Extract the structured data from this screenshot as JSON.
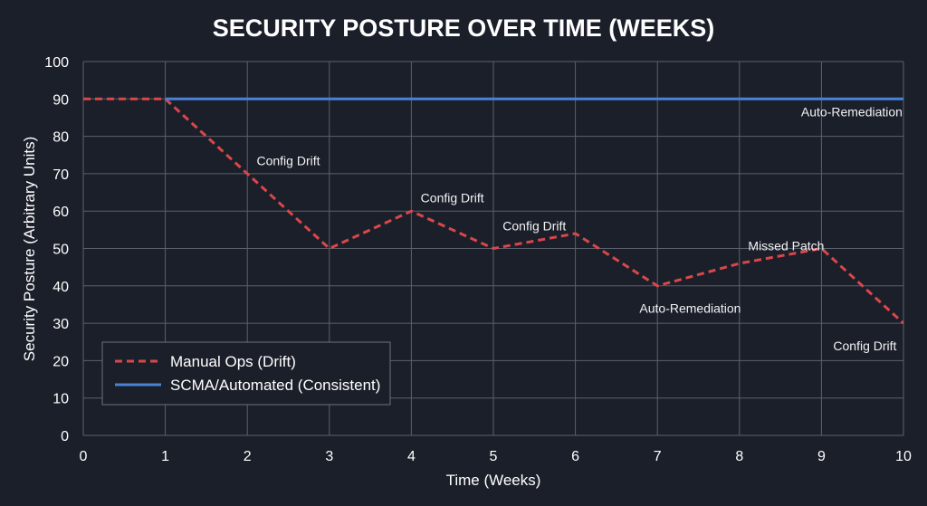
{
  "chart_data": {
    "type": "line",
    "title": "SECURITY POSTURE OVER TIME (WEEKS)",
    "xlabel": "Time (Weeks)",
    "ylabel": "Security Posture (Arbitrary Units)",
    "xlim": [
      0,
      10
    ],
    "ylim": [
      0,
      100
    ],
    "x_ticks": [
      0,
      1,
      2,
      3,
      4,
      5,
      6,
      7,
      8,
      9,
      10
    ],
    "y_ticks": [
      0,
      10,
      20,
      30,
      40,
      50,
      60,
      70,
      80,
      90,
      100
    ],
    "grid": true,
    "legend_position": "bottom-left",
    "series": [
      {
        "name": "Manual Ops (Drift)",
        "style": "dashed",
        "color": "#d9474b",
        "x": [
          0,
          1,
          2,
          3,
          4,
          5,
          6,
          7,
          8,
          9,
          10
        ],
        "y": [
          90,
          90,
          70,
          50,
          60,
          50,
          54,
          40,
          46,
          50,
          30
        ]
      },
      {
        "name": "SCMA/Automated (Consistent)",
        "style": "solid",
        "color": "#4a82d4",
        "x": [
          1,
          10
        ],
        "y": [
          90,
          90
        ]
      }
    ],
    "annotations": [
      {
        "text": "Config Drift",
        "x": 2.5,
        "y": 73.5
      },
      {
        "text": "Config Drift",
        "x": 4.5,
        "y": 63.5
      },
      {
        "text": "Config Drift",
        "x": 5.5,
        "y": 56
      },
      {
        "text": "Auto-Remediation",
        "x": 7.4,
        "y": 34
      },
      {
        "text": "Missed Patch",
        "x": 8.57,
        "y": 50.7
      },
      {
        "text": "Auto-Remediation",
        "x": 9.37,
        "y": 86.6
      },
      {
        "text": "Config Drift",
        "x": 9.53,
        "y": 24
      }
    ]
  }
}
